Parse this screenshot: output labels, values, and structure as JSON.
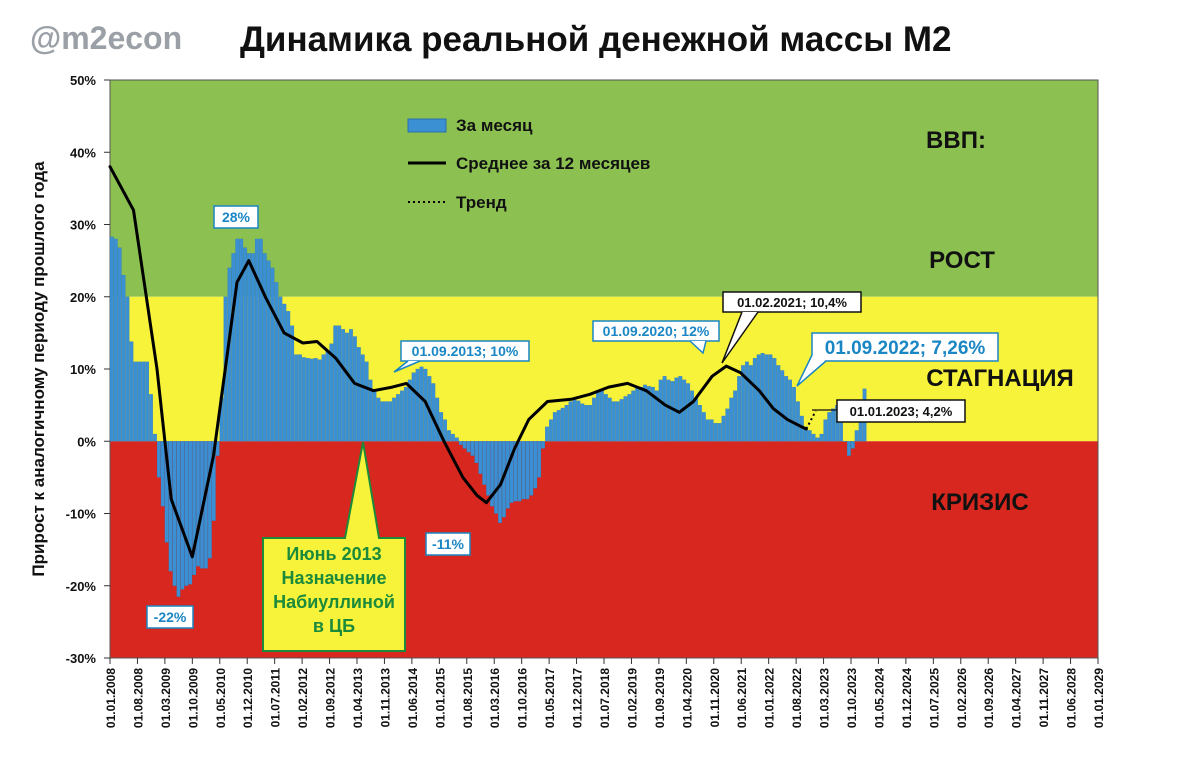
{
  "brand": "@m2econ",
  "title": "Динамика реальной денежной массы М2",
  "chart_data": {
    "type": "bar",
    "title": "Динамика реальной денежной массы М2",
    "ylabel": "Прирост к аналогичному периоду прошлого года",
    "ylim": [
      -30,
      50
    ],
    "y_ticks": [
      "50%",
      "40%",
      "30%",
      "20%",
      "10%",
      "0%",
      "-10%",
      "-20%",
      "-30%"
    ],
    "x_ticks": [
      "01.01.2008",
      "01.08.2008",
      "01.03.2009",
      "01.10.2009",
      "01.05.2010",
      "01.12.2010",
      "01.07.2011",
      "01.02.2012",
      "01.09.2012",
      "01.04.2013",
      "01.11.2013",
      "01.06.2014",
      "01.01.2015",
      "01.08.2015",
      "01.03.2016",
      "01.10.2016",
      "01.05.2017",
      "01.12.2017",
      "01.07.2018",
      "01.02.2019",
      "01.09.2019",
      "01.04.2020",
      "01.11.2020",
      "01.06.2021",
      "01.01.2022",
      "01.08.2022",
      "01.03.2023",
      "01.10.2023",
      "01.05.2024",
      "01.12.2024",
      "01.07.2025",
      "01.02.2026",
      "01.09.2026",
      "01.04.2027",
      "01.11.2027",
      "01.06.2028",
      "01.01.2029"
    ],
    "zones": [
      {
        "label": "РОСТ",
        "from": 20,
        "to": 50,
        "color": "#8cc152"
      },
      {
        "label": "СТАГНАЦИЯ",
        "from": 0,
        "to": 20,
        "color": "#f7f23a"
      },
      {
        "label": "КРИЗИС",
        "from": -30,
        "to": 0,
        "color": "#d8271e"
      }
    ],
    "zone_header": "ВВП:",
    "legend": [
      {
        "label": "За месяц",
        "kind": "bar",
        "color": "#3b8fd3"
      },
      {
        "label": "Среднее за 12 месяцев",
        "kind": "line",
        "color": "#000000"
      },
      {
        "label": "Тренд",
        "kind": "dotted",
        "color": "#000000"
      }
    ],
    "series": [
      {
        "name": "За месяц",
        "start_month": "01.01.2008",
        "values": [
          28.3,
          28.0,
          26.8,
          23.0,
          20.0,
          13.8,
          11.0,
          11.0,
          11.0,
          11.0,
          6.5,
          1.0,
          -5.0,
          -9.0,
          -14.0,
          -18.0,
          -20.0,
          -21.5,
          -20.5,
          -20.0,
          -19.8,
          -18.5,
          -17.3,
          -17.6,
          -17.6,
          -16.2,
          -11.0,
          -2.0,
          6.0,
          20.0,
          24.0,
          26.0,
          28.0,
          28.0,
          26.8,
          26.0,
          26.0,
          28.0,
          28.0,
          26.0,
          25.0,
          24.0,
          22.0,
          20.0,
          19.0,
          18.0,
          16.0,
          12.0,
          12.0,
          11.6,
          11.5,
          11.4,
          11.5,
          11.3,
          12.0,
          12.5,
          13.5,
          16.0,
          16.0,
          15.5,
          15.0,
          15.5,
          14.5,
          13.0,
          12.0,
          11.0,
          8.5,
          7.0,
          6.0,
          5.5,
          5.5,
          5.5,
          6.0,
          6.5,
          7.0,
          7.5,
          8.5,
          9.5,
          10.0,
          10.3,
          10.0,
          9.0,
          8.0,
          6.0,
          4.0,
          3.0,
          1.5,
          1.0,
          0.5,
          -0.5,
          -1.0,
          -1.5,
          -2.0,
          -3.0,
          -4.5,
          -6.0,
          -7.5,
          -9.0,
          -10.0,
          -11.3,
          -10.5,
          -9.3,
          -8.5,
          -8.3,
          -8.3,
          -8.0,
          -8.0,
          -7.5,
          -6.5,
          -5.0,
          -1.0,
          2.0,
          3.0,
          4.0,
          4.3,
          4.6,
          5.0,
          5.5,
          5.8,
          5.6,
          5.2,
          5.0,
          5.0,
          6.0,
          7.0,
          7.0,
          6.5,
          6.0,
          5.5,
          5.5,
          5.8,
          6.2,
          6.5,
          7.0,
          7.5,
          7.5,
          7.8,
          7.6,
          7.5,
          7.0,
          8.5,
          9.0,
          8.5,
          8.3,
          8.8,
          9.0,
          8.5,
          8.0,
          7.0,
          6.0,
          5.0,
          4.0,
          3.0,
          3.0,
          2.5,
          2.5,
          3.5,
          4.5,
          6.0,
          7.0,
          9.0,
          10.5,
          11.0,
          10.5,
          11.5,
          12.0,
          12.2,
          12.0,
          12.0,
          11.5,
          10.5,
          9.8,
          9.0,
          8.5,
          7.5,
          5.5,
          3.5,
          2.0,
          1.5,
          1.0,
          0.5,
          1.0,
          3.0,
          4.0,
          4.5,
          5.0,
          3.5,
          0.0,
          -2.0,
          -1.0,
          1.5,
          3.5,
          7.26
        ]
      },
      {
        "name": "Среднее за 12 месяцев",
        "points": [
          [
            2008.0,
            38
          ],
          [
            2008.5,
            32
          ],
          [
            2009.0,
            10
          ],
          [
            2009.3,
            -8
          ],
          [
            2009.75,
            -16
          ],
          [
            2010.2,
            -2
          ],
          [
            2010.7,
            22
          ],
          [
            2010.95,
            25
          ],
          [
            2011.3,
            20
          ],
          [
            2011.7,
            15
          ],
          [
            2012.1,
            13.6
          ],
          [
            2012.4,
            13.8
          ],
          [
            2012.8,
            11.5
          ],
          [
            2013.2,
            8
          ],
          [
            2013.6,
            7
          ],
          [
            2014.0,
            7.5
          ],
          [
            2014.3,
            8
          ],
          [
            2014.7,
            5.5
          ],
          [
            2015.1,
            0
          ],
          [
            2015.5,
            -5
          ],
          [
            2015.8,
            -7.5
          ],
          [
            2016.0,
            -8.5
          ],
          [
            2016.3,
            -6
          ],
          [
            2016.6,
            -1
          ],
          [
            2016.9,
            3
          ],
          [
            2017.3,
            5.5
          ],
          [
            2017.8,
            5.8
          ],
          [
            2018.2,
            6.5
          ],
          [
            2018.6,
            7.5
          ],
          [
            2019.0,
            8
          ],
          [
            2019.4,
            7
          ],
          [
            2019.8,
            5
          ],
          [
            2020.1,
            4
          ],
          [
            2020.4,
            5.5
          ],
          [
            2020.8,
            9
          ],
          [
            2021.1,
            10.4
          ],
          [
            2021.4,
            9.5
          ],
          [
            2021.8,
            7
          ],
          [
            2022.1,
            4.5
          ],
          [
            2022.4,
            3
          ],
          [
            2022.7,
            2
          ],
          [
            2022.8,
            1.7
          ]
        ]
      },
      {
        "name": "Тренд",
        "points": [
          [
            2022.8,
            1.7
          ],
          [
            2023.0,
            4.2
          ]
        ]
      }
    ],
    "annotations": [
      {
        "text": "28%",
        "style": "box-teal"
      },
      {
        "text": "-22%",
        "style": "box-teal"
      },
      {
        "text": "-11%",
        "style": "box-teal"
      },
      {
        "text": "01.09.2013; 10%",
        "style": "box-teal"
      },
      {
        "text": "01.09.2020; 12%",
        "style": "box-teal"
      },
      {
        "text": "01.02.2021; 10,4%",
        "style": "box-dark"
      },
      {
        "text": "01.09.2022; 7,26%",
        "style": "box-teal-big"
      },
      {
        "text": "01.01.2023; 4,2%",
        "style": "box-dark"
      }
    ],
    "callout": [
      "Июнь 2013",
      "Назначение",
      "Набиуллиной",
      "в ЦБ"
    ]
  }
}
